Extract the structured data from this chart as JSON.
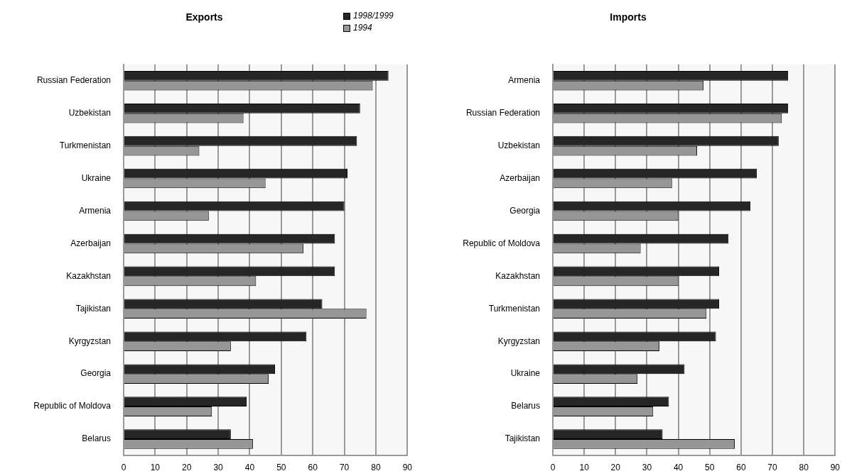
{
  "chart_data": [
    {
      "type": "bar",
      "orientation": "horizontal",
      "title": "Exports",
      "legend": "top right",
      "grid": "x",
      "xlim": [
        0,
        90
      ],
      "xticks": [
        0,
        10,
        20,
        30,
        40,
        50,
        60,
        70,
        80,
        90
      ],
      "categories": [
        "Russian Federation",
        "Uzbekistan",
        "Turkmenistan",
        "Ukraine",
        "Armenia",
        "Azerbaijan",
        "Kazakhstan",
        "Tajikistan",
        "Kyrgyzstan",
        "Georgia",
        "Republic of Moldova",
        "Belarus"
      ],
      "series": [
        {
          "name": "1998/1999",
          "color": "#262626",
          "values": [
            84,
            75,
            74,
            71,
            70,
            67,
            67,
            63,
            58,
            48,
            39,
            34
          ]
        },
        {
          "name": "1994",
          "color": "#969696",
          "values": [
            79,
            38,
            24,
            45,
            27,
            57,
            42,
            77,
            34,
            46,
            28,
            41
          ]
        }
      ]
    },
    {
      "type": "bar",
      "orientation": "horizontal",
      "title": "Imports",
      "legend": false,
      "grid": "x",
      "xlim": [
        0,
        90
      ],
      "xticks": [
        0,
        10,
        20,
        30,
        40,
        50,
        60,
        70,
        80,
        90
      ],
      "categories": [
        "Armenia",
        "Russian Federation",
        "Uzbekistan",
        "Azerbaijan",
        "Georgia",
        "Republic of Moldova",
        "Kazakhstan",
        "Turkmenistan",
        "Kyrgyzstan",
        "Ukraine",
        "Belarus",
        "Tajikistan"
      ],
      "series": [
        {
          "color": "#262626",
          "values": [
            75,
            75,
            72,
            65,
            63,
            56,
            53,
            53,
            52,
            42,
            37,
            35
          ]
        },
        {
          "color": "#969696",
          "values": [
            48,
            73,
            46,
            38,
            40,
            28,
            40,
            49,
            34,
            27,
            32,
            58
          ]
        }
      ]
    }
  ]
}
